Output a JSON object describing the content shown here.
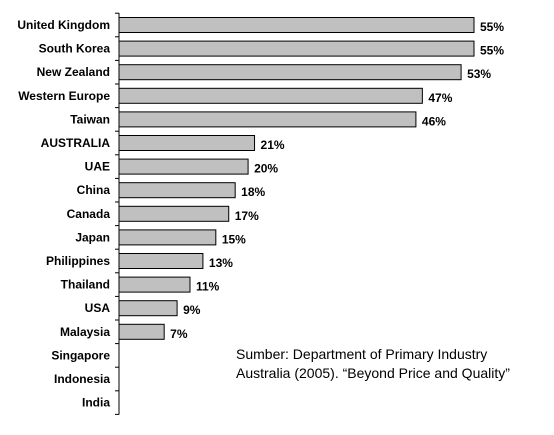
{
  "chart_data": {
    "type": "bar",
    "orientation": "horizontal",
    "categories": [
      "United Kingdom",
      "South Korea",
      "New Zealand",
      "Western Europe",
      "Taiwan",
      "AUSTRALIA",
      "UAE",
      "China",
      "Canada",
      "Japan",
      "Philippines",
      "Thailand",
      "USA",
      "Malaysia",
      "Singapore",
      "Indonesia",
      "India"
    ],
    "values": [
      55,
      55,
      53,
      47,
      46,
      21,
      20,
      18,
      17,
      15,
      13,
      11,
      9,
      7,
      null,
      null,
      null
    ],
    "value_labels": [
      "55%",
      "55%",
      "53%",
      "47%",
      "46%",
      "21%",
      "20%",
      "18%",
      "17%",
      "15%",
      "13%",
      "11%",
      "9%",
      "7%",
      "",
      "",
      ""
    ],
    "xlim": [
      0,
      55
    ],
    "bar_color": "#c0c0c0",
    "grid": false,
    "legend": false
  },
  "source_note": {
    "line1": "Sumber: Department of Primary Industry",
    "line2": "Australia (2005). “Beyond Price and Quality”"
  }
}
